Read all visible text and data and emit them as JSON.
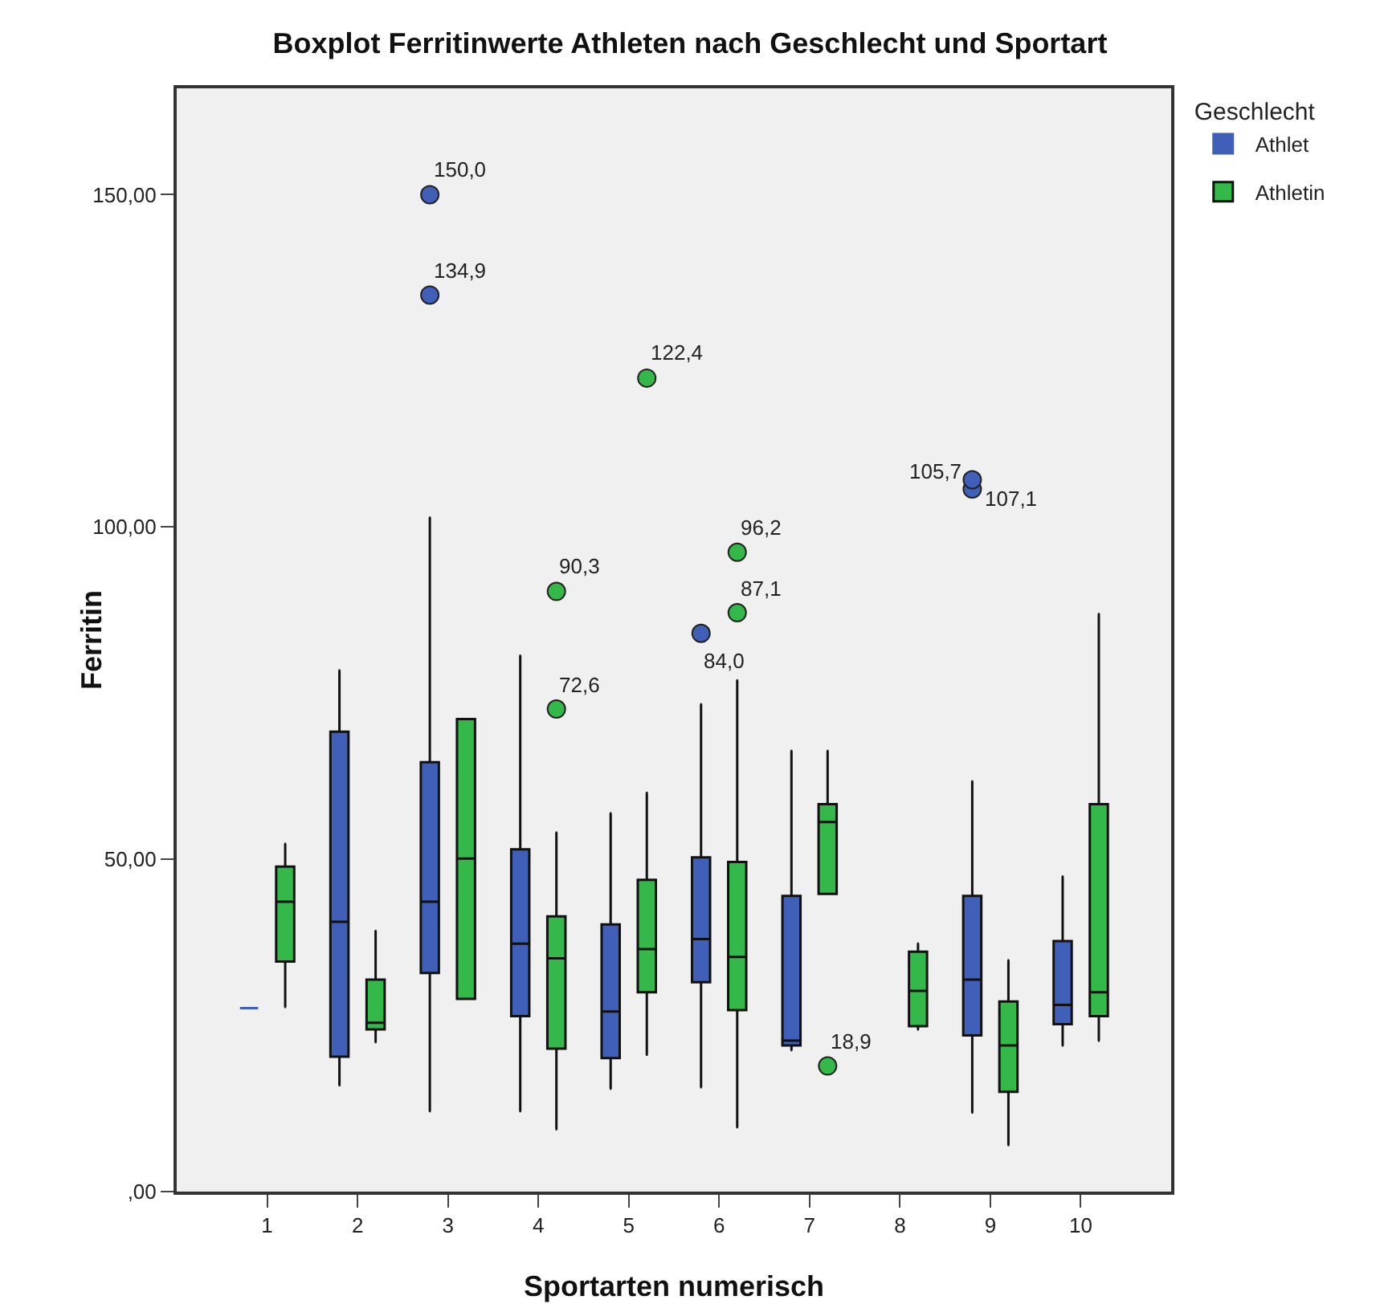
{
  "chart_data": {
    "type": "box",
    "title": "Boxplot Ferritinwerte Athleten nach Geschlecht und Sportart",
    "xlabel": "Sportarten numerisch",
    "ylabel": "Ferritin",
    "legend_title": "Geschlecht",
    "legend": "top right",
    "grid": false,
    "categories": [
      "1",
      "2",
      "3",
      "4",
      "5",
      "6",
      "7",
      "8",
      "9",
      "10"
    ],
    "ylim": [
      0,
      166
    ],
    "yticks": [
      {
        "value": 0,
        "label": ",00"
      },
      {
        "value": 50,
        "label": "50,00"
      },
      {
        "value": 100,
        "label": "100,00"
      },
      {
        "value": 150,
        "label": "150,00"
      }
    ],
    "series": [
      {
        "name": "Athlet",
        "color": "#3f5fb8",
        "boxes": [
          {
            "low": 27.6,
            "q1": 27.6,
            "median": 27.6,
            "q3": 27.6,
            "high": 27.6
          },
          {
            "low": 16.0,
            "q1": 20.3,
            "median": 40.6,
            "q3": 69.2,
            "high": 78.4
          },
          {
            "low": 12.1,
            "q1": 32.9,
            "median": 43.6,
            "q3": 64.6,
            "high": 101.4,
            "outliers": [
              134.9,
              150.0
            ]
          },
          {
            "low": 12.1,
            "q1": 26.4,
            "median": 37.3,
            "q3": 51.5,
            "high": 80.6
          },
          {
            "low": 15.5,
            "q1": 20.1,
            "median": 27.1,
            "q3": 40.2,
            "high": 56.9
          },
          {
            "low": 15.7,
            "q1": 31.5,
            "median": 38.0,
            "q3": 50.3,
            "high": 73.3,
            "outliers": [
              84.0
            ]
          },
          {
            "low": 21.3,
            "q1": 22.0,
            "median": 22.7,
            "q3": 44.5,
            "high": 66.3
          },
          null,
          {
            "low": 11.9,
            "q1": 23.5,
            "median": 31.9,
            "q3": 44.5,
            "high": 61.7,
            "outliers": [
              105.7,
              107.1
            ]
          },
          {
            "low": 22.0,
            "q1": 25.2,
            "median": 28.1,
            "q3": 37.7,
            "high": 47.4
          }
        ]
      },
      {
        "name": "Athletin",
        "color": "#33b849",
        "boxes": [
          {
            "low": 27.8,
            "q1": 34.6,
            "median": 43.6,
            "q3": 48.9,
            "high": 52.3
          },
          {
            "low": 22.5,
            "q1": 24.4,
            "median": 25.4,
            "q3": 31.9,
            "high": 39.2
          },
          {
            "low": 29.0,
            "q1": 29.0,
            "median": 50.1,
            "q3": 71.1,
            "high": 71.1
          },
          {
            "low": 9.4,
            "q1": 21.5,
            "median": 35.1,
            "q3": 41.4,
            "high": 54.0,
            "outliers": [
              72.6,
              90.3
            ]
          },
          {
            "low": 20.6,
            "q1": 30.0,
            "median": 36.5,
            "q3": 46.9,
            "high": 60.0,
            "outliers": [
              122.4
            ]
          },
          {
            "low": 9.7,
            "q1": 27.3,
            "median": 35.3,
            "q3": 49.6,
            "high": 76.9,
            "outliers": [
              87.1,
              96.2
            ]
          },
          {
            "low": 44.8,
            "q1": 44.8,
            "median": 55.6,
            "q3": 58.3,
            "high": 66.3,
            "outliers": [
              18.9
            ]
          },
          {
            "low": 24.4,
            "q1": 24.9,
            "median": 30.2,
            "q3": 36.1,
            "high": 37.3
          },
          {
            "low": 7.0,
            "q1": 15.0,
            "median": 22.0,
            "q3": 28.6,
            "high": 34.8
          },
          {
            "low": 22.7,
            "q1": 26.4,
            "median": 30.0,
            "q3": 58.3,
            "high": 86.9
          }
        ]
      }
    ],
    "annotations": [
      "134,9",
      "150,0",
      "84,0",
      "105,7",
      "107,1",
      "72,6",
      "90,3",
      "122,4",
      "87,1",
      "96,2",
      "18,9"
    ]
  }
}
